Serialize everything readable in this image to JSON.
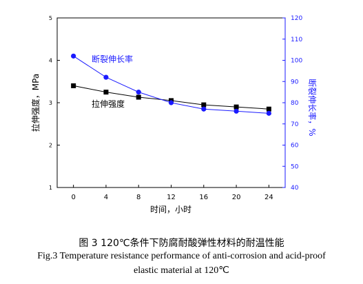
{
  "chart_data": {
    "type": "line",
    "x": [
      0,
      4,
      8,
      12,
      16,
      20,
      24
    ],
    "xticks": [
      "0",
      "4",
      "8",
      "12",
      "16",
      "20",
      "24"
    ],
    "xlim": [
      -2,
      26
    ],
    "xlabel": "时间，小时",
    "left_axis": {
      "label": "拉伸强度，MPa",
      "ylim": [
        1,
        5
      ],
      "ticks": [
        "1",
        "2",
        "3",
        "4",
        "5"
      ],
      "color": "#000000"
    },
    "right_axis": {
      "label": "断裂伸长率，%",
      "ylim": [
        40,
        120
      ],
      "ticks": [
        "40",
        "50",
        "60",
        "70",
        "80",
        "90",
        "100",
        "110",
        "120"
      ],
      "color": "#1a1aff"
    },
    "series": [
      {
        "name": "拉伸强度",
        "axis": "left",
        "marker": "square",
        "color": "#000000",
        "values": [
          3.4,
          3.25,
          3.13,
          3.05,
          2.95,
          2.9,
          2.85
        ]
      },
      {
        "name": "断裂伸长率",
        "axis": "right",
        "marker": "circle",
        "color": "#1a1aff",
        "values": [
          102,
          92,
          85,
          80,
          77,
          76,
          75
        ]
      }
    ]
  },
  "caption": {
    "zh": "图 3    120℃条件下防腐耐酸弹性材料的耐温性能",
    "en_line1": "Fig.3 Temperature resistance performance of anti-corrosion and acid-proof",
    "en_line2": "elastic material at 120℃"
  }
}
